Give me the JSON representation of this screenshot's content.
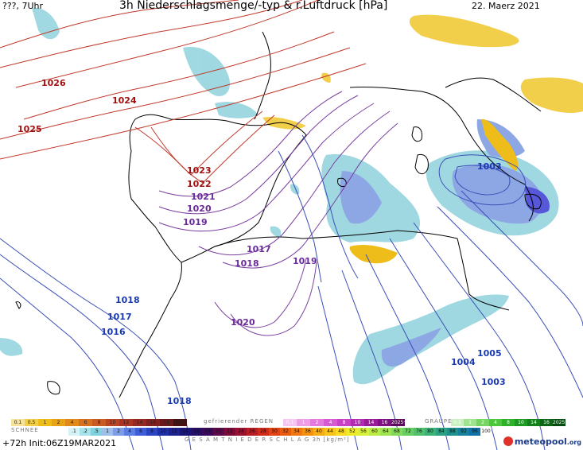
{
  "header": {
    "left": "???, 7Uhr",
    "title": "3h Niederschlagsmenge/-typ & r.Luftdruck [hPa]",
    "date": "22. Maerz 2021"
  },
  "isobars": {
    "red": [
      "1026",
      "1024",
      "1025",
      "1023",
      "1022"
    ],
    "purple": [
      "1021",
      "1020",
      "1019",
      "1017",
      "1018",
      "1019",
      "1020"
    ],
    "blue": [
      "1003",
      "1018",
      "1017",
      "1016",
      "1018",
      "1005",
      "1004",
      "1003"
    ]
  },
  "legend": {
    "snow_label": "SCHNEE",
    "freezing_label": "gefrierender REGEN",
    "hail_label": "GRAUPEL",
    "total_label": "G E S A M T N I E D E R S C H L A G   3h   [kg/m²]",
    "row1_rain": [
      "0.1",
      "0.5",
      "1",
      "2",
      "4",
      "6",
      "8",
      "10",
      "12",
      "14",
      "16",
      "18",
      "2025+"
    ],
    "row1_freezing": [
      "0.1",
      "1",
      "2",
      "4",
      "8",
      "10",
      "14",
      "16",
      "2025+"
    ],
    "row1_hail": [
      "0.1",
      "1",
      "2",
      "4",
      "8",
      "10",
      "14",
      "16",
      "2025+"
    ],
    "row2_snow": [
      ".1",
      ".2",
      ".5",
      "1",
      "2",
      "4",
      "6",
      "8",
      "10",
      "12",
      "14",
      "16",
      "18",
      "20",
      "22",
      "24",
      "26",
      "28",
      "30",
      "32",
      "34",
      "36",
      "40",
      "44",
      "48",
      "52",
      "56",
      "60",
      "64",
      "68",
      "72",
      "76",
      "80",
      "84",
      "88",
      "92",
      "96",
      "100"
    ],
    "colors_rain": [
      "#f7e29a",
      "#f2cf4a",
      "#eebd1a",
      "#e8a317",
      "#e08a1c",
      "#d4701e",
      "#c85a22",
      "#b84424",
      "#a83526",
      "#952a24",
      "#802020",
      "#6a1a1a",
      "#4a1010"
    ],
    "colors_freezing": [
      "#f6c6f0",
      "#ee9ee6",
      "#e47adc",
      "#d85ad2",
      "#c840c4",
      "#b22cb2",
      "#981c9a",
      "#7c1080",
      "#5e0860"
    ],
    "colors_hail": [
      "#c8f0c0",
      "#9ee48e",
      "#74d660",
      "#4cc63c",
      "#2eb22a",
      "#1e9a22",
      "#14801c",
      "#0c6616",
      "#064c10"
    ],
    "colors_snow": [
      "#d6f2f4",
      "#a6e4ea",
      "#7fd2de",
      "#a0bfe8",
      "#7d9ee6",
      "#5a7ee2",
      "#3d5ed8",
      "#2a44c4",
      "#1e30a8",
      "#1c2290",
      "#1a1678",
      "#240e66",
      "#3a0a5a",
      "#5a0a4a",
      "#7a0c3a",
      "#9a1230",
      "#b81c26",
      "#d02a1c",
      "#e04214",
      "#ea5c10",
      "#f07810",
      "#f49210",
      "#f6ac14",
      "#f8c41a",
      "#f8da22",
      "#eeea2c",
      "#d8f03a",
      "#bcec44",
      "#9ee44e",
      "#82da58",
      "#68ce62",
      "#50c06c",
      "#3cb276",
      "#2ca282",
      "#20928e",
      "#18829a",
      "#1272a6",
      "#ffffff"
    ]
  },
  "footer": {
    "init": "+72h  Init:06Z19MAR2021",
    "logo": "meteopool",
    "logo_suffix": ".org"
  }
}
